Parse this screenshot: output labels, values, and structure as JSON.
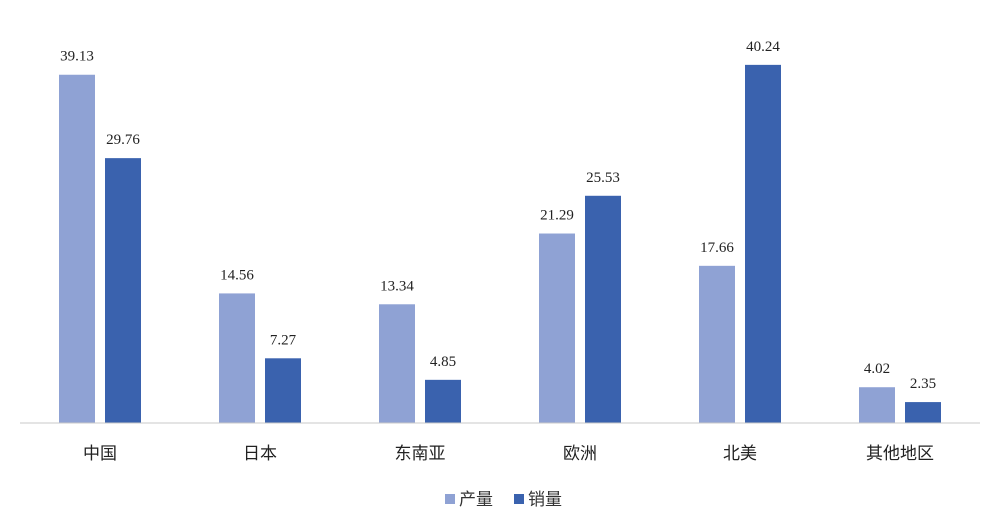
{
  "chart_data": {
    "type": "bar",
    "categories": [
      "中国",
      "日本",
      "东南亚",
      "欧洲",
      "北美",
      "其他地区"
    ],
    "series": [
      {
        "name": "产量",
        "color": "#8fa2d4",
        "values": [
          39.13,
          14.56,
          13.34,
          21.29,
          17.66,
          4.02
        ]
      },
      {
        "name": "销量",
        "color": "#3a62ae",
        "values": [
          29.76,
          7.27,
          4.85,
          25.53,
          40.24,
          2.35
        ]
      }
    ]
  }
}
